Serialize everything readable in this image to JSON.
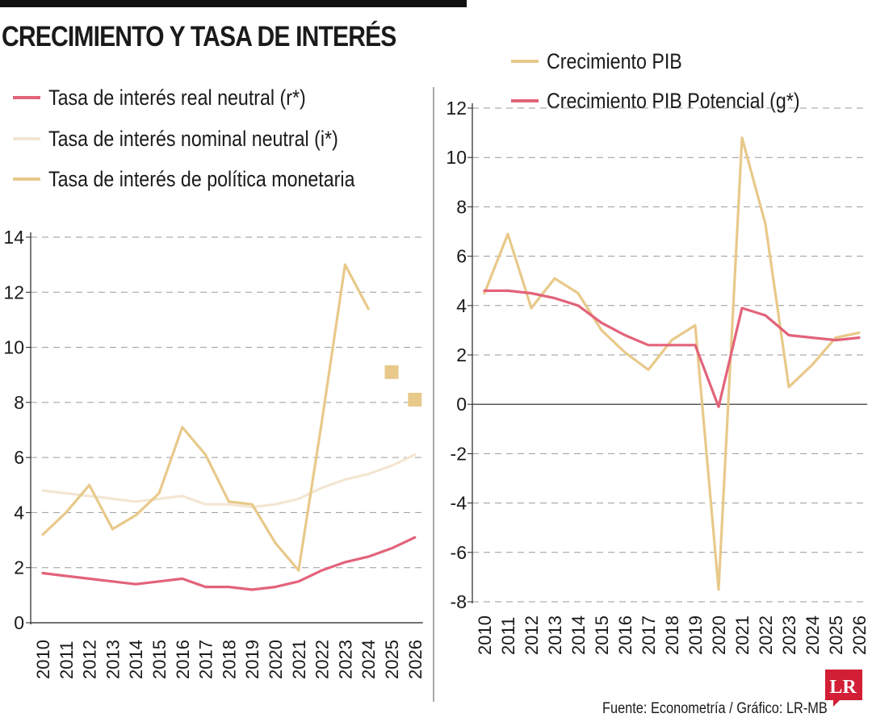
{
  "title": "CRECIMIENTO Y TASA DE INTERÉS",
  "footer": "Fuente: Econometría / Gráfico: LR-MB",
  "logo_text": "LR",
  "colors": {
    "pink": "#e2637a",
    "gold": "#e8c98a",
    "cream": "#f3e6d2",
    "logo": "#d21f36"
  },
  "chart_data": [
    {
      "type": "line",
      "x": [
        2010,
        2011,
        2012,
        2013,
        2014,
        2015,
        2016,
        2017,
        2018,
        2019,
        2020,
        2021,
        2022,
        2023,
        2024,
        2025,
        2026
      ],
      "ylim": [
        0,
        14
      ],
      "yticks": [
        0,
        2,
        4,
        6,
        8,
        10,
        12,
        14
      ],
      "grid": true,
      "legend_position": "top-left",
      "series": [
        {
          "name": "Tasa de interés real neutral (r*)",
          "color": "#e2637a",
          "values": [
            1.8,
            1.7,
            1.6,
            1.5,
            1.4,
            1.5,
            1.6,
            1.3,
            1.3,
            1.2,
            1.3,
            1.5,
            1.9,
            2.2,
            2.4,
            2.7,
            3.1
          ]
        },
        {
          "name": "Tasa de interés nominal neutral (i*)",
          "color": "#f3e6d2",
          "values": [
            4.8,
            4.7,
            4.6,
            4.5,
            4.4,
            4.5,
            4.6,
            4.3,
            4.3,
            4.2,
            4.3,
            4.5,
            4.9,
            5.2,
            5.4,
            5.7,
            6.1
          ]
        },
        {
          "name": "Tasa de interés de política monetaria",
          "color": "#e8c98a",
          "values": [
            3.2,
            4.0,
            5.0,
            3.4,
            3.9,
            4.7,
            7.1,
            6.1,
            4.4,
            4.3,
            2.9,
            1.9,
            7.3,
            13.0,
            11.4,
            null,
            null
          ],
          "projected_markers": [
            {
              "x": 2025,
              "y": 9.1
            },
            {
              "x": 2026,
              "y": 8.1
            }
          ]
        }
      ]
    },
    {
      "type": "line",
      "x": [
        2010,
        2011,
        2012,
        2013,
        2014,
        2015,
        2016,
        2017,
        2018,
        2019,
        2020,
        2021,
        2022,
        2023,
        2024,
        2025,
        2026
      ],
      "ylim": [
        -8,
        12
      ],
      "yticks": [
        -8,
        -6,
        -4,
        -2,
        0,
        2,
        4,
        6,
        8,
        10,
        12
      ],
      "grid": true,
      "legend_position": "top",
      "series": [
        {
          "name": "Crecimiento PIB",
          "color": "#e8c98a",
          "values": [
            4.5,
            6.9,
            3.9,
            5.1,
            4.5,
            3.0,
            2.1,
            1.4,
            2.6,
            3.2,
            -7.5,
            10.8,
            7.3,
            0.7,
            1.6,
            2.7,
            2.9
          ]
        },
        {
          "name": "Crecimiento PIB Potencial (g*)",
          "color": "#e2637a",
          "values": [
            4.6,
            4.6,
            4.5,
            4.3,
            4.0,
            3.3,
            2.8,
            2.4,
            2.4,
            2.4,
            -0.1,
            3.9,
            3.6,
            2.8,
            2.7,
            2.6,
            2.7
          ]
        }
      ]
    }
  ]
}
